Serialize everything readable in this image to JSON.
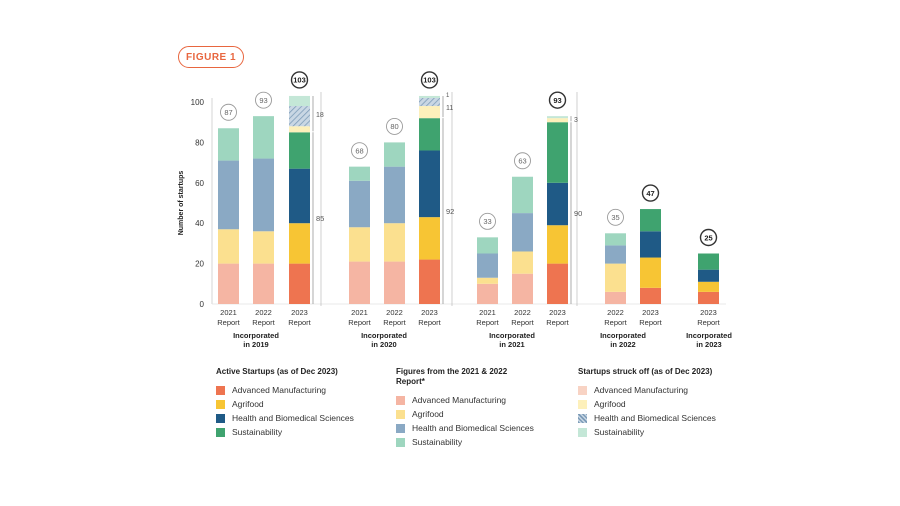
{
  "figure_label": "FIGURE 1",
  "chart_data": {
    "type": "bar",
    "stacked": true,
    "ylabel": "Number of startups",
    "ylim": [
      0,
      100
    ],
    "yticks": [
      0,
      20,
      40,
      60,
      80,
      100
    ],
    "categories_order": [
      "Advanced Manufacturing",
      "Agrifood",
      "Health and Biomedical Sciences",
      "Sustainability"
    ],
    "colors": {
      "active": [
        "#ee7450",
        "#f7c534",
        "#1f5a86",
        "#3fa36f"
      ],
      "reported": [
        "#f5b5a3",
        "#fbe08f",
        "#8aa9c4",
        "#9ed6bf"
      ],
      "struck_off": [
        "#f8d3c4",
        "#fdf0bb",
        "#b6c8d8",
        "#c4e7d7"
      ]
    },
    "groups": [
      {
        "label": "Incorporated in 2019",
        "bars": [
          {
            "label": "2021 Report",
            "kind": "reported",
            "total": "87",
            "values": [
              20,
              17,
              34,
              16
            ]
          },
          {
            "label": "2022 Report",
            "kind": "reported",
            "total": "93",
            "values": [
              20,
              16,
              36,
              21
            ]
          },
          {
            "label": "2023 Report",
            "kind": "current",
            "total": "103",
            "values": [
              20,
              20,
              27,
              18
            ],
            "struck_values": [
              0,
              3,
              10,
              5
            ],
            "bracket_active": "85",
            "bracket_struck": "18"
          }
        ]
      },
      {
        "label": "Incorporated in 2020",
        "bars": [
          {
            "label": "2021 Report",
            "kind": "reported",
            "total": "68",
            "values": [
              21,
              17,
              23,
              7
            ]
          },
          {
            "label": "2022 Report",
            "kind": "reported",
            "total": "80",
            "values": [
              21,
              19,
              28,
              12
            ]
          },
          {
            "label": "2023 Report",
            "kind": "current",
            "total": "103",
            "values": [
              22,
              21,
              33,
              16
            ],
            "struck_values": [
              0,
              6,
              4,
              1
            ],
            "bracket_active": "92",
            "bracket_struck": "11",
            "bracket_top": "1"
          }
        ]
      },
      {
        "label": "Incorporated in 2021",
        "bars": [
          {
            "label": "2021 Report",
            "kind": "reported",
            "total": "33",
            "values": [
              10,
              3,
              12,
              8
            ]
          },
          {
            "label": "2022 Report",
            "kind": "reported",
            "total": "63",
            "values": [
              15,
              11,
              19,
              18
            ]
          },
          {
            "label": "2023 Report",
            "kind": "current",
            "total": "93",
            "values": [
              20,
              19,
              21,
              30
            ],
            "struck_values": [
              0,
              2,
              0,
              1
            ],
            "bracket_active": "90",
            "bracket_struck": "3"
          }
        ]
      },
      {
        "label": "Incorporated in 2022",
        "bars": [
          {
            "label": "2022 Report",
            "kind": "reported",
            "total": "35",
            "values": [
              6,
              14,
              9,
              6
            ]
          },
          {
            "label": "2023 Report",
            "kind": "current",
            "total": "47",
            "values": [
              8,
              15,
              13,
              11
            ],
            "struck_values": [
              0,
              0,
              0,
              0
            ]
          }
        ]
      },
      {
        "label": "Incorporated in 2023",
        "bars": [
          {
            "label": "2023 Report",
            "kind": "current",
            "total": "25",
            "values": [
              6,
              5,
              6,
              8
            ],
            "struck_values": [
              0,
              0,
              0,
              0
            ]
          }
        ]
      }
    ]
  },
  "legend": {
    "active": {
      "title": "Active Startups (as of Dec 2023)",
      "items": [
        "Advanced Manufacturing",
        "Agrifood",
        "Health and Biomedical Sciences",
        "Sustainability"
      ]
    },
    "reported": {
      "title": "Figures from the 2021 & 2022 Report*",
      "items": [
        "Advanced Manufacturing",
        "Agrifood",
        "Health and Biomedical Sciences",
        "Sustainability"
      ]
    },
    "struck_off": {
      "title": "Startups struck off (as of Dec 2023)",
      "items": [
        "Advanced Manufacturing",
        "Agrifood",
        "Health and Biomedical Sciences",
        "Sustainability"
      ]
    }
  }
}
